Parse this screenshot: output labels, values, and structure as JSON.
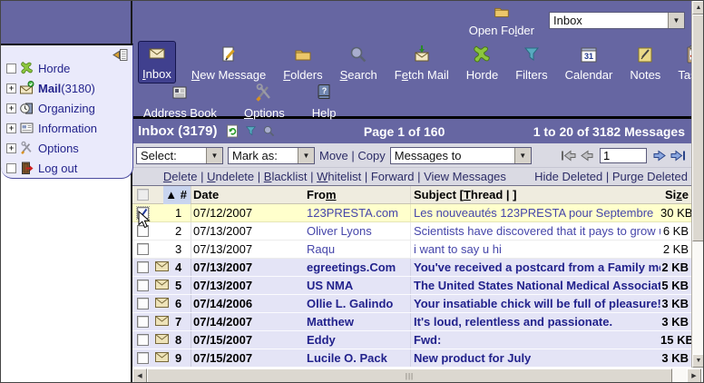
{
  "colors": {
    "purple_chrome": "#6666a2",
    "toolbar_selected": "#40408e",
    "panel_bg": "#eaeafb",
    "bar_bg": "#dadae3",
    "header_row_bg": "#efecdf",
    "sort_highlight": "#c9d5ef",
    "selected_row": "#ffffcc",
    "unread_row": "#e4e4f6",
    "link_navy": "#2c2c66",
    "read_link": "#4646aa",
    "unread_link": "#22228c"
  },
  "icons": {
    "open-folder-icon": "tan folder",
    "inbox-icon": "envelope",
    "new-message-icon": "page with pencil",
    "folders-icon": "tan folder",
    "search-icon": "magnifying glass",
    "fetch-mail-icon": "envelope with green down arrow",
    "horde-icon": "green gecko",
    "filters-icon": "blue funnel",
    "calendar-icon": "calendar page 31",
    "notes-icon": "yellow note with pencil",
    "tasks-icon": "clipboard with red check",
    "address-book-icon": "contact card",
    "options-icon": "crossed tools",
    "help-icon": "book with question mark",
    "refresh-icon": "page with green recycle arrows",
    "mail-icon": "envelope with green badge",
    "organizing-icon": "clock",
    "information-icon": "newspaper",
    "logout-icon": "door with red arrow",
    "collapse-icon": "panel with left arrow",
    "envelope-icon": "unread message envelope",
    "sort-asc-icon": "▲",
    "dropdown-arrow-icon": "▼",
    "first-page-icon": "gray arrow to bar",
    "prev-page-icon": "gray left arrow",
    "next-page-icon": "blue right arrow",
    "last-page-icon": "blue arrow to bar",
    "cursor": "mouse pointer"
  },
  "open_folder": {
    "label": {
      "t": "Open Folder",
      "u": 7
    },
    "value": "Inbox"
  },
  "toolbar": {
    "row1": [
      {
        "label": {
          "t": "Inbox",
          "u": 0
        },
        "selected": true
      },
      {
        "label": {
          "t": "New Message",
          "u": 0
        }
      },
      {
        "label": {
          "t": "Folders",
          "u": 0
        }
      },
      {
        "label": {
          "t": "Search",
          "u": 0
        }
      },
      {
        "label": {
          "t": "Fetch Mail",
          "u": 1
        }
      },
      {
        "label": {
          "t": "Horde"
        }
      },
      {
        "label": {
          "t": "Filters"
        }
      },
      {
        "label": {
          "t": "Calendar"
        }
      },
      {
        "label": {
          "t": "Notes"
        }
      },
      {
        "label": {
          "t": "Tasks"
        }
      }
    ],
    "row2": [
      {
        "label": {
          "t": "Address Book"
        }
      },
      {
        "label": {
          "t": "Options",
          "u": 0
        }
      },
      {
        "label": {
          "t": "Help"
        }
      }
    ]
  },
  "sidebar": {
    "items": [
      {
        "label": "Horde",
        "count": ""
      },
      {
        "label": "Mail",
        "count": " (3180)"
      },
      {
        "label": "Organizing",
        "count": ""
      },
      {
        "label": "Information",
        "count": ""
      },
      {
        "label": "Options",
        "count": ""
      },
      {
        "label": "Log out",
        "count": ""
      }
    ]
  },
  "list_header": {
    "title": "Inbox (3179)",
    "page": "Page 1 of 160",
    "range": "1 to 20 of 3182 Messages"
  },
  "actions": {
    "select": "Select:",
    "mark_as": "Mark as:",
    "move": "Move",
    "copy": "Copy",
    "messages_to": "Messages to",
    "page_input": "1"
  },
  "links": {
    "delete": {
      "t": "Delete",
      "u": 0
    },
    "undelete": {
      "t": "Undelete",
      "u": 0
    },
    "blacklist": {
      "t": "Blacklist",
      "u": 0
    },
    "whitelist": {
      "t": "Whitelist",
      "u": 0
    },
    "forward": {
      "t": "Forward"
    },
    "view_messages": {
      "t": "View Messages"
    },
    "hide_deleted": {
      "t": "Hide Deleted"
    },
    "purge_deleted": {
      "t": "Purge Deleted",
      "u": 3
    }
  },
  "table": {
    "sort_icon": "▲",
    "headers": {
      "num": "#",
      "date": "Date",
      "from": {
        "t": "From",
        "u": 3
      },
      "subject": "Subject",
      "thread_prefix": "[",
      "thread": {
        "t": "Thread",
        "u": 0
      },
      "thread_suffix": "]",
      "size": {
        "t": "Size",
        "u": 2
      }
    },
    "rows": [
      {
        "num": "1",
        "date": "07/12/2007",
        "from": "123PRESTA.com",
        "subject": "Les nouveautés 123PRESTA pour Septembre",
        "size": "30 KB",
        "state": "selected",
        "checked": true
      },
      {
        "num": "2",
        "date": "07/13/2007",
        "from": "Oliver Lyons",
        "subject": "Scientists have discovered that it pays to grow up in margi",
        "size": "6 KB",
        "state": "read"
      },
      {
        "num": "3",
        "date": "07/13/2007",
        "from": "Raqu",
        "subject": "i want to say u hi",
        "size": "2 KB",
        "state": "read"
      },
      {
        "num": "4",
        "date": "07/13/2007",
        "from": "egreetings.Com",
        "subject": "You've received a postcard from a Family member!",
        "size": "2 KB",
        "state": "unread"
      },
      {
        "num": "5",
        "date": "07/13/2007",
        "from": "US NMA",
        "subject": "The United States National Medical Association",
        "size": "5 KB",
        "state": "unread"
      },
      {
        "num": "6",
        "date": "07/14/2006",
        "from": "Ollie L. Galindo",
        "subject": "Your insatiable chick will be full of pleasure!",
        "size": "3 KB",
        "state": "unread"
      },
      {
        "num": "7",
        "date": "07/14/2007",
        "from": "Matthew",
        "subject": "It's loud, relentless and passionate.",
        "size": "3 KB",
        "state": "unread"
      },
      {
        "num": "8",
        "date": "07/15/2007",
        "from": "Eddy",
        "subject": "Fwd:",
        "size": "15 KB",
        "state": "unread"
      },
      {
        "num": "9",
        "date": "07/15/2007",
        "from": "Lucile O. Pack",
        "subject": "New product for July",
        "size": "3 KB",
        "state": "unread"
      }
    ]
  }
}
